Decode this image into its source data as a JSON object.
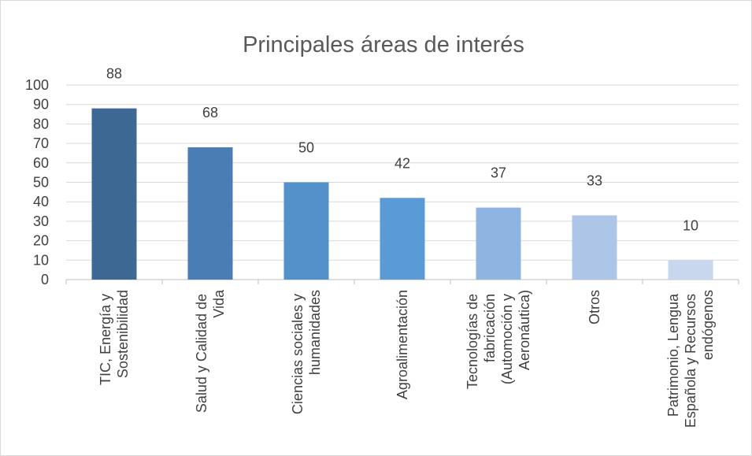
{
  "chart_data": {
    "type": "bar",
    "title": "Principales áreas de interés",
    "categories": [
      "TIC, Energía y Sostenibilidad",
      "Salud y Calidad de Vida",
      "Ciencias sociales y humanidades",
      "Agroalimentación",
      "Tecnologías de fabricación (Automoción y Aeronáutica)",
      "Otros",
      "Patrimonio, Lengua Española y Recursos endógenos"
    ],
    "values": [
      88,
      68,
      50,
      42,
      37,
      33,
      10
    ],
    "colors": [
      "#3e6894",
      "#4a7db3",
      "#5490c9",
      "#5b9bd5",
      "#8eb4e1",
      "#adc5e7",
      "#c8d7ee"
    ],
    "ylim": [
      0,
      100
    ],
    "yticks": [
      0,
      10,
      20,
      30,
      40,
      50,
      60,
      70,
      80,
      90,
      100
    ],
    "grid": true
  }
}
